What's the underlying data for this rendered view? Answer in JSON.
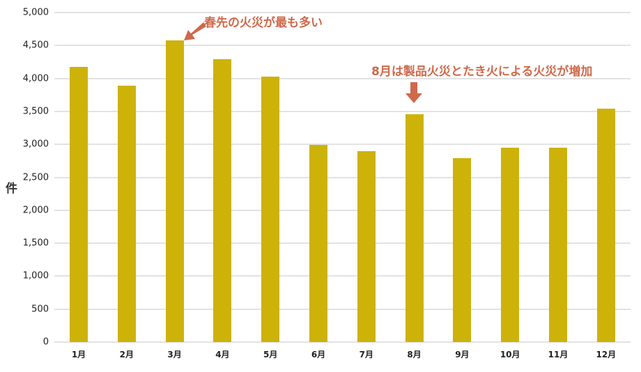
{
  "chart_data": {
    "type": "bar",
    "title": "",
    "xlabel": "",
    "ylabel": "件",
    "ylim": [
      0,
      5000
    ],
    "yticks": [
      0,
      500,
      1000,
      1500,
      2000,
      2500,
      3000,
      3500,
      4000,
      4500,
      5000
    ],
    "ytick_labels": [
      "0",
      "500",
      "1,000",
      "1,500",
      "2,000",
      "2,500",
      "3,000",
      "3,500",
      "4,000",
      "4,500",
      "5,000"
    ],
    "categories": [
      "1月",
      "2月",
      "3月",
      "4月",
      "5月",
      "6月",
      "7月",
      "8月",
      "9月",
      "10月",
      "11月",
      "12月"
    ],
    "values": [
      4180,
      3890,
      4580,
      4290,
      4030,
      2990,
      2900,
      3460,
      2790,
      2950,
      2950,
      3540
    ],
    "grid": true,
    "legend": null,
    "bar_color": "#cdb20a",
    "annotations": [
      {
        "text": "春先の火災が最も多い",
        "target": "3月",
        "arrow": "down-left",
        "color": "#d0694b"
      },
      {
        "text": "8月は製品火災とたき火による火災が増加",
        "target": "8月",
        "arrow": "down",
        "color": "#d0694b"
      }
    ]
  },
  "annotations": {
    "spring": "春先の火災が最も多い",
    "august": "8月は製品火災とたき火による火災が増加"
  },
  "axis": {
    "unit": "件"
  }
}
